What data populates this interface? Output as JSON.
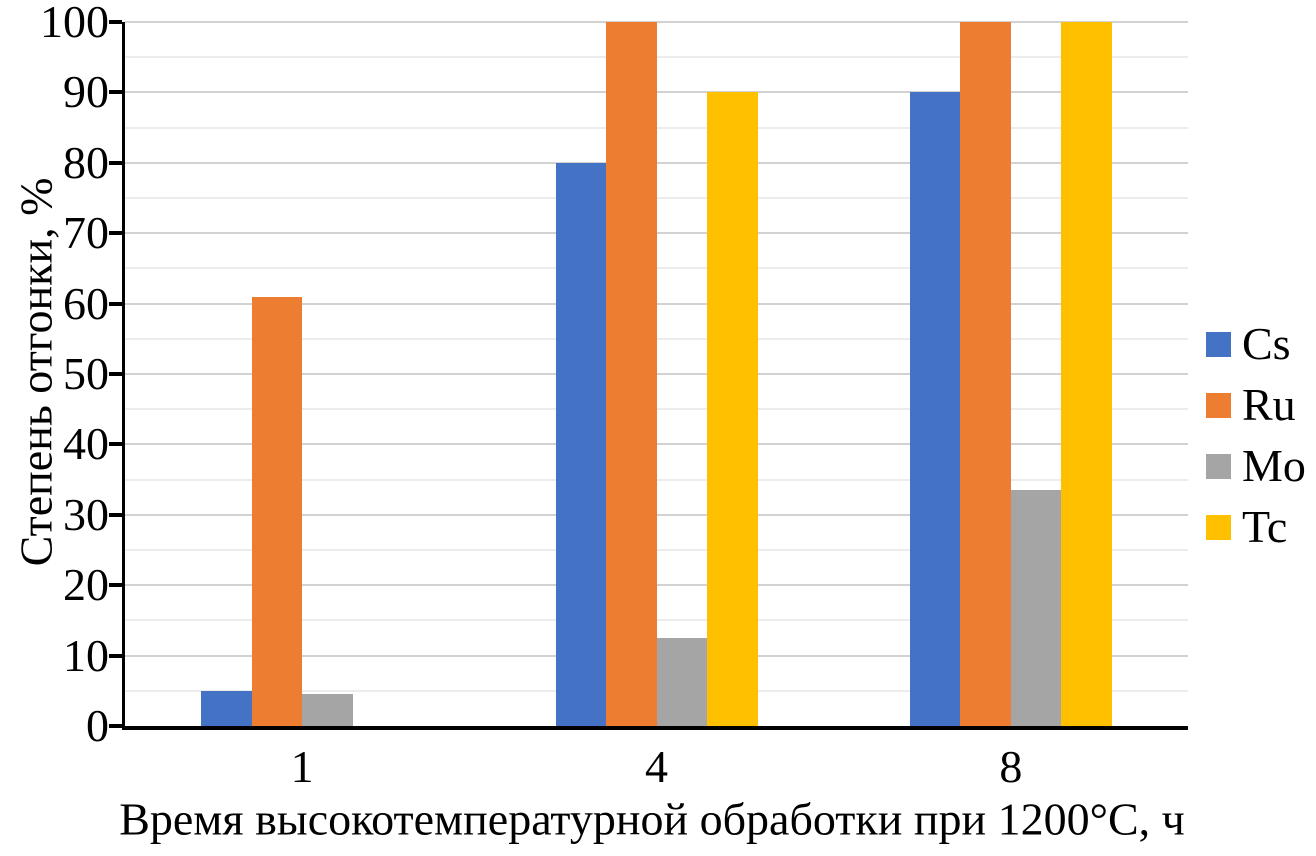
{
  "chart_data": {
    "type": "bar",
    "title": "",
    "xlabel": "Время высокотемпературной обработки при 1200°C, ч",
    "ylabel": "Степень отгонки, %",
    "categories": [
      "1",
      "4",
      "8"
    ],
    "series": [
      {
        "name": "Cs",
        "color": "#4472C4",
        "values": [
          5,
          80,
          90
        ]
      },
      {
        "name": "Ru",
        "color": "#ED7D31",
        "values": [
          61,
          100,
          100
        ]
      },
      {
        "name": "Mo",
        "color": "#A5A5A5",
        "values": [
          4.5,
          12.5,
          33.5
        ]
      },
      {
        "name": "Tc",
        "color": "#FFC000",
        "values": [
          null,
          90,
          100
        ]
      }
    ],
    "ylim": [
      0,
      100
    ],
    "yticks": [
      0,
      10,
      20,
      30,
      40,
      50,
      60,
      70,
      80,
      90,
      100
    ],
    "ytick_step": 10,
    "minor_grid_step": 5,
    "grid": true,
    "legend_position": "right",
    "legend_entries": [
      "Cs",
      "Ru",
      "Mo",
      "Tc"
    ],
    "colors": {
      "axis": "#000000",
      "major_grid": "#d2d2d2",
      "minor_grid": "#ececec",
      "background": "#ffffff"
    }
  }
}
